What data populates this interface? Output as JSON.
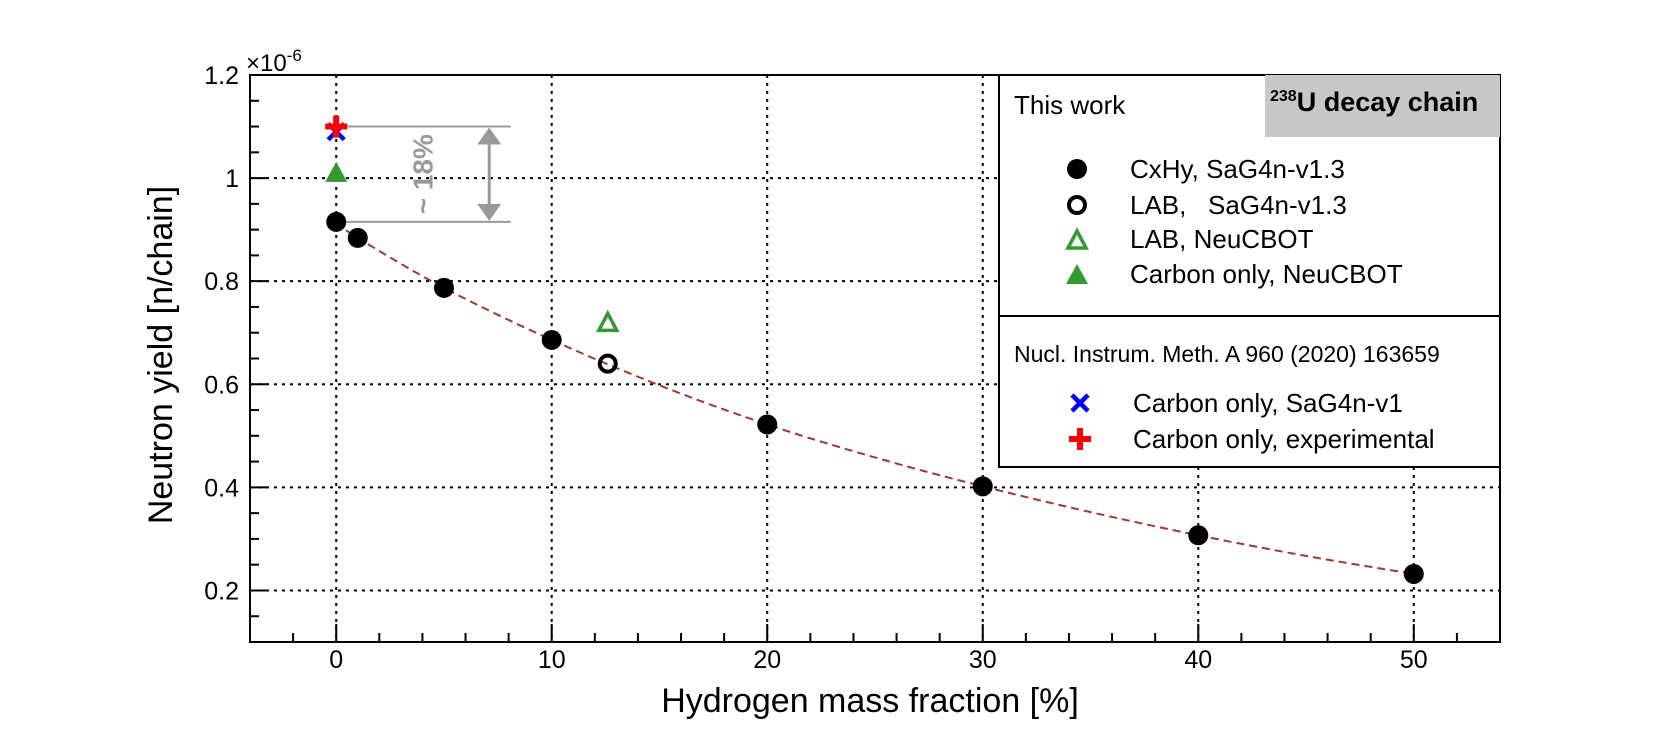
{
  "chart_data": {
    "type": "scatter",
    "title": "",
    "xlabel": "Hydrogen mass fraction [%]",
    "ylabel": "Neutron yield [n/chain]",
    "y_multiplier": "×10",
    "y_multiplier_exp": "-6",
    "xlim": [
      -4,
      54
    ],
    "ylim": [
      0.1,
      1.2
    ],
    "x_ticks": [
      0,
      10,
      20,
      30,
      40,
      50
    ],
    "x_tick_labels": [
      "0",
      "10",
      "20",
      "30",
      "40",
      "50"
    ],
    "y_ticks": [
      0.2,
      0.4,
      0.6,
      0.8,
      1.0,
      1.2
    ],
    "y_tick_labels": [
      "0.2",
      "0.4",
      "0.6",
      "0.8",
      "1",
      "1.2"
    ],
    "grid": true,
    "legend_position": "top-right",
    "badge": {
      "sup": "238",
      "text": "U decay chain"
    },
    "legend": {
      "group1_title": "This work",
      "group2_title": "Nucl. Instrum. Meth. A 960 (2020) 163659",
      "entries": [
        {
          "label": "CxHy, SaG4n-v1.3",
          "marker": "filled-circle",
          "color": "#000000",
          "group": 1
        },
        {
          "label": "LAB,   SaG4n-v1.3",
          "marker": "open-circle",
          "color": "#000000",
          "group": 1
        },
        {
          "label": "LAB, NeuCBOT",
          "marker": "open-triangle",
          "color": "#339933",
          "group": 1
        },
        {
          "label": "Carbon only, NeuCBOT",
          "marker": "filled-triangle",
          "color": "#339933",
          "group": 1
        },
        {
          "label": "Carbon only, SaG4n-v1",
          "marker": "x",
          "color": "#0000ff",
          "group": 2
        },
        {
          "label": "Carbon only, experimental",
          "marker": "plus",
          "color": "#ff0000",
          "group": 2
        }
      ]
    },
    "series": [
      {
        "name": "CxHy, SaG4n-v1.3",
        "marker": "filled-circle",
        "color": "#000000",
        "points": [
          {
            "x": 0,
            "y": 0.915
          },
          {
            "x": 1,
            "y": 0.884
          },
          {
            "x": 5,
            "y": 0.787
          },
          {
            "x": 10,
            "y": 0.686
          },
          {
            "x": 20,
            "y": 0.522
          },
          {
            "x": 30,
            "y": 0.402
          },
          {
            "x": 40,
            "y": 0.307
          },
          {
            "x": 50,
            "y": 0.232
          }
        ]
      },
      {
        "name": "LAB,   SaG4n-v1.3",
        "marker": "open-circle",
        "color": "#000000",
        "points": [
          {
            "x": 12.6,
            "y": 0.64
          }
        ]
      },
      {
        "name": "LAB, NeuCBOT",
        "marker": "open-triangle",
        "color": "#339933",
        "points": [
          {
            "x": 12.6,
            "y": 0.72
          }
        ]
      },
      {
        "name": "Carbon only, NeuCBOT",
        "marker": "filled-triangle",
        "color": "#339933",
        "points": [
          {
            "x": 0,
            "y": 1.01
          }
        ]
      },
      {
        "name": "Carbon only, SaG4n-v1",
        "marker": "x",
        "color": "#0000ff",
        "points": [
          {
            "x": 0,
            "y": 1.09
          }
        ]
      },
      {
        "name": "Carbon only, experimental",
        "marker": "plus",
        "color": "#ff0000",
        "points": [
          {
            "x": 0,
            "y": 1.1
          }
        ]
      }
    ],
    "fit_curve": {
      "style": "dashed",
      "color": "#a0392e",
      "points": [
        {
          "x": 0,
          "y": 0.915
        },
        {
          "x": 1,
          "y": 0.884
        },
        {
          "x": 5,
          "y": 0.787
        },
        {
          "x": 10,
          "y": 0.686
        },
        {
          "x": 15,
          "y": 0.598
        },
        {
          "x": 20,
          "y": 0.522
        },
        {
          "x": 25,
          "y": 0.458
        },
        {
          "x": 30,
          "y": 0.402
        },
        {
          "x": 35,
          "y": 0.352
        },
        {
          "x": 40,
          "y": 0.307
        },
        {
          "x": 45,
          "y": 0.267
        },
        {
          "x": 50,
          "y": 0.232
        }
      ]
    },
    "annotation": {
      "text": "~ 18%",
      "y_top": 1.1,
      "y_bottom": 0.915,
      "x_start": 0,
      "x_end": 8.1,
      "arrow_x": 7.1,
      "color": "#999999"
    }
  }
}
